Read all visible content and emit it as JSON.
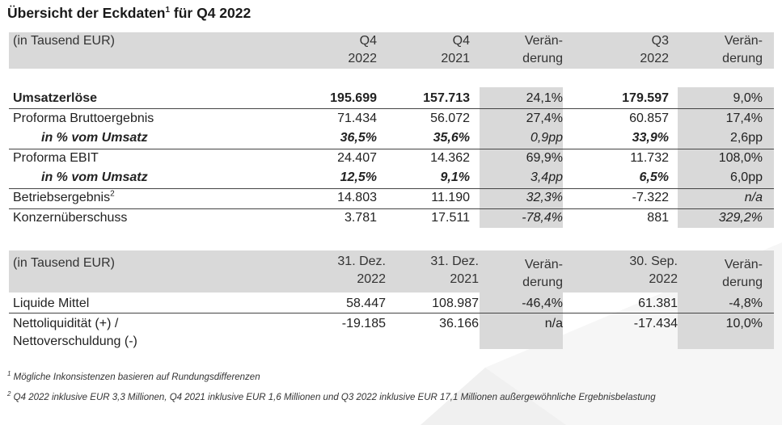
{
  "title": "Übersicht der Eckdaten",
  "title_sup": "1",
  "title_suffix": " für Q4 2022",
  "table1": {
    "header": {
      "label": "(in Tausend EUR)",
      "q4_2022": [
        "Q4",
        "2022"
      ],
      "q4_2021": [
        "Q4",
        "2021"
      ],
      "change1": [
        "Verän-",
        "derung"
      ],
      "q3_2022": [
        "Q3",
        "2022"
      ],
      "change2": [
        "Verän-",
        "derung"
      ]
    },
    "rows": [
      {
        "label": "Umsatzerlöse",
        "v1": "195.699",
        "v2": "157.713",
        "c1": "24,1%",
        "v3": "179.597",
        "c2": "9,0%"
      },
      {
        "label": "Proforma Bruttoergebnis",
        "v1": "71.434",
        "v2": "56.072",
        "c1": "27,4%",
        "v3": "60.857",
        "c2": "17,4%"
      },
      {
        "label": "in % vom Umsatz",
        "v1": "36,5%",
        "v2": "35,6%",
        "c1": "0,9pp",
        "v3": "33,9%",
        "c2": "2,6pp"
      },
      {
        "label": "Proforma EBIT",
        "v1": "24.407",
        "v2": "14.362",
        "c1": "69,9%",
        "v3": "11.732",
        "c2": "108,0%"
      },
      {
        "label": "in % vom Umsatz",
        "v1": "12,5%",
        "v2": "9,1%",
        "c1": "3,4pp",
        "v3": "6,5%",
        "c2": "6,0pp"
      },
      {
        "label": "Betriebsergebnis",
        "label_sup": "2",
        "v1": "14.803",
        "v2": "11.190",
        "c1": "32,3%",
        "v3": "-7.322",
        "c2": "n/a"
      },
      {
        "label": "Konzernüberschuss",
        "v1": "3.781",
        "v2": "17.511",
        "c1": "-78,4%",
        "v3": "881",
        "c2": "329,2%"
      }
    ]
  },
  "table2": {
    "header": {
      "label": "(in Tausend EUR)",
      "d1": [
        "31. Dez.",
        "2022"
      ],
      "d2": [
        "31. Dez.",
        "2021"
      ],
      "change1": [
        "Verän-",
        "derung"
      ],
      "d3": [
        "30. Sep.",
        "2022"
      ],
      "change2": [
        "Verän-",
        "derung"
      ]
    },
    "rows": [
      {
        "label": "Liquide Mittel",
        "v1": "58.447",
        "v2": "108.987",
        "c1": "-46,4%",
        "v3": "61.381",
        "c2": "-4,8%"
      },
      {
        "label": "Nettoliquidität (+) /",
        "label2": "Nettoverschuldung (-)",
        "v1": "-19.185",
        "v2": "36.166",
        "c1": "n/a",
        "v3": "-17.434",
        "c2": "10,0%"
      }
    ]
  },
  "footnotes": [
    {
      "sup": "1",
      "text": "Mögliche Inkonsistenzen basieren auf Rundungsdifferenzen"
    },
    {
      "sup": "2",
      "text": "Q4 2022 inklusive EUR 3,3 Millionen, Q4 2021 inklusive EUR 1,6 Millionen und Q3 2022 inklusive EUR 17,1 Millionen außergewöhnliche Ergebnisbelastung"
    }
  ]
}
